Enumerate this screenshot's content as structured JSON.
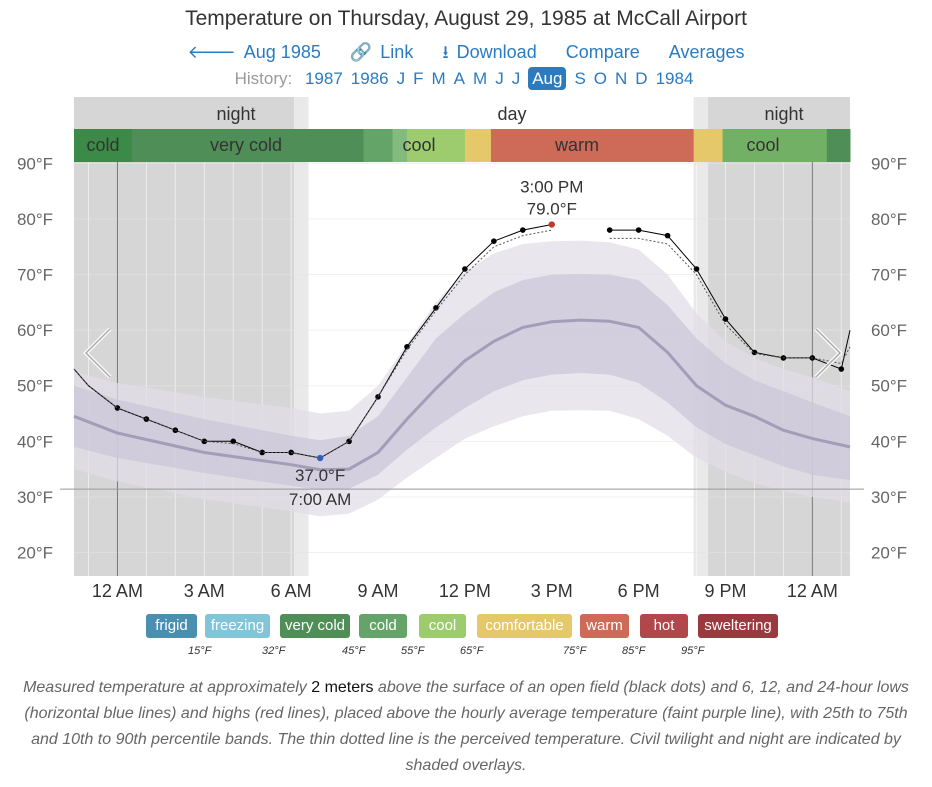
{
  "header": {
    "title": "Temperature on Thursday, August 29, 1985 at McCall Airport",
    "nav_back": "Aug 1985",
    "nav_link": "Link",
    "nav_download": "Download",
    "nav_compare": "Compare",
    "nav_averages": "Averages"
  },
  "history": {
    "label": "History:",
    "items": [
      "1987",
      "1986",
      "J",
      "F",
      "M",
      "A",
      "M",
      "J",
      "J",
      "Aug",
      "S",
      "O",
      "N",
      "D",
      "1984"
    ],
    "selected": "Aug"
  },
  "colors": {
    "link": "#2a7bc0",
    "night": "#d6d6d6",
    "twilight": "#e9e9e9",
    "band_outer": "#e0dde8",
    "band_inner": "#cbc6d9",
    "avg_line": "#a39db8",
    "measured": "#000000",
    "max_marker": "#c0392b",
    "min_marker": "#3060c0"
  },
  "chart_data": {
    "type": "line",
    "title": "Temperature on Thursday, August 29, 1985 at McCall Airport",
    "x_unit": "hour of day",
    "xlim": [
      -1.5,
      25.3
    ],
    "ylim": [
      16.5,
      96
    ],
    "y_ticks": [
      20,
      30,
      40,
      50,
      60,
      70,
      80,
      90
    ],
    "y_tick_labels": [
      "20°F",
      "30°F",
      "40°F",
      "50°F",
      "60°F",
      "70°F",
      "80°F",
      "90°F"
    ],
    "x_ticks": [
      0,
      3,
      6,
      9,
      12,
      15,
      18,
      21,
      24
    ],
    "x_tick_labels": [
      "12 AM",
      "3 AM",
      "6 AM",
      "9 AM",
      "12 PM",
      "3 PM",
      "6 PM",
      "9 PM",
      "12 AM"
    ],
    "periods": [
      {
        "label": "night",
        "kind": "night",
        "start": -1.5,
        "end": 6.1
      },
      {
        "label": "",
        "kind": "twilight",
        "start": 6.1,
        "end": 6.6
      },
      {
        "label": "day",
        "kind": "day",
        "start": 6.6,
        "end": 19.9
      },
      {
        "label": "",
        "kind": "twilight",
        "start": 19.9,
        "end": 20.4
      },
      {
        "label": "night",
        "kind": "night",
        "start": 20.4,
        "end": 25.3
      }
    ],
    "category_bar": [
      {
        "label": "cold",
        "start": -1.5,
        "end": 0.5,
        "color": "#3c8a47"
      },
      {
        "label": "very cold",
        "start": 0.5,
        "end": 8.5,
        "color": "#4f8e57"
      },
      {
        "label": "",
        "start": 8.5,
        "end": 9.5,
        "color": "#64a468"
      },
      {
        "label": "",
        "start": 9.5,
        "end": 10.0,
        "color": "#82bb7c"
      },
      {
        "label": "cool",
        "start": 10.0,
        "end": 12.0,
        "color": "#9ccc6e"
      },
      {
        "label": "",
        "start": 12.0,
        "end": 12.9,
        "color": "#e5c869"
      },
      {
        "label": "warm",
        "start": 12.9,
        "end": 19.9,
        "color": "#ce6a58"
      },
      {
        "label": "",
        "start": 19.9,
        "end": 20.9,
        "color": "#e5c869"
      },
      {
        "label": "cool",
        "start": 20.9,
        "end": 24.5,
        "color": "#72b066"
      },
      {
        "label": "",
        "start": 24.5,
        "end": 25.3,
        "color": "#4f8e57"
      }
    ],
    "series": [
      {
        "name": "measured temperature",
        "x": [
          -1.5,
          -1,
          0,
          1,
          2,
          3,
          4,
          5,
          6,
          7,
          8,
          9,
          10,
          11,
          12,
          13,
          14,
          15
        ],
        "values": [
          53,
          50,
          46,
          44,
          42,
          40,
          40,
          38,
          38,
          37,
          40,
          48,
          57,
          64,
          71,
          76,
          78,
          79
        ]
      },
      {
        "name": "measured temperature (evening)",
        "x": [
          17,
          18,
          19,
          20,
          21,
          22,
          23,
          24,
          25,
          25.3
        ],
        "values": [
          78,
          78,
          77,
          71,
          62,
          56,
          55,
          55,
          53,
          60
        ]
      },
      {
        "name": "perceived temperature",
        "x": [
          -1.5,
          -1,
          0,
          1,
          2,
          3,
          4,
          5,
          6,
          7,
          8,
          9,
          10,
          11,
          12,
          13,
          14,
          15
        ],
        "values": [
          53,
          50,
          46,
          44,
          42,
          40,
          39.6,
          38,
          38,
          37,
          40,
          48,
          56.5,
          63.5,
          70,
          75,
          77,
          78
        ]
      },
      {
        "name": "perceived temperature (evening)",
        "x": [
          17,
          18,
          19,
          20,
          21,
          22,
          23,
          24,
          25,
          25.3
        ],
        "values": [
          76.5,
          76.5,
          75.5,
          70,
          61,
          55.8,
          55,
          55,
          54,
          57
        ]
      }
    ],
    "average": {
      "x": [
        -1.5,
        0,
        3,
        6,
        7,
        8,
        9,
        10,
        11,
        12,
        13,
        14,
        15,
        16,
        17,
        18,
        19,
        20,
        21,
        22,
        23,
        24,
        25.3
      ],
      "avg": [
        44.5,
        41.5,
        38,
        35.8,
        34.9,
        35,
        38,
        44,
        49.5,
        54.5,
        58,
        60.5,
        61.5,
        61.8,
        61.6,
        60.5,
        56,
        50,
        46.5,
        44.5,
        42,
        40.5,
        39
      ],
      "p25": [
        39,
        37,
        34.3,
        32,
        31.3,
        31.5,
        34,
        38.5,
        42.5,
        46,
        49,
        51,
        52,
        52.3,
        52,
        50.5,
        47,
        42.5,
        39.5,
        37.5,
        35.5,
        34,
        33
      ],
      "p75": [
        50,
        47.5,
        44,
        41,
        40.2,
        41,
        44.5,
        51.5,
        58.5,
        63,
        66.8,
        69,
        70,
        70.1,
        70,
        69,
        64.5,
        58.5,
        54,
        51,
        49,
        47,
        44.5
      ],
      "p10": [
        35,
        32.8,
        29.6,
        27.4,
        26.5,
        27,
        29.5,
        33.5,
        37,
        40.5,
        42.7,
        44.5,
        45.5,
        45.6,
        45.5,
        44,
        41,
        37,
        34.5,
        32.5,
        31,
        30,
        29
      ],
      "p90": [
        52.5,
        50.5,
        48,
        46,
        45,
        45.5,
        50,
        57.5,
        65,
        70.5,
        73.8,
        75.5,
        76,
        76.1,
        75.8,
        74.5,
        70,
        63,
        58,
        55,
        53,
        51.5,
        49
      ]
    },
    "annotations": [
      {
        "kind": "max",
        "x": 15,
        "y": 79,
        "line1": "3:00 PM",
        "line2": "79.0°F"
      },
      {
        "kind": "min",
        "x": 7,
        "y": 37,
        "line1": "37.0°F",
        "line2": "7:00 AM"
      }
    ],
    "reference_line": {
      "y": 31.4
    }
  },
  "legend": {
    "categories": [
      {
        "label": "frigid",
        "color": "#4a8fb0"
      },
      {
        "label": "freezing",
        "color": "#82c4d8"
      },
      {
        "label": "very cold",
        "color": "#4f8e57"
      },
      {
        "label": "cold",
        "color": "#64a468"
      },
      {
        "label": "cool",
        "color": "#9ccc6e"
      },
      {
        "label": "comfortable",
        "color": "#e5c869"
      },
      {
        "label": "warm",
        "color": "#ce6a58"
      },
      {
        "label": "hot",
        "color": "#b2474b"
      },
      {
        "label": "sweltering",
        "color": "#9b3a3e"
      }
    ],
    "thresholds": [
      "15°F",
      "32°F",
      "45°F",
      "55°F",
      "65°F",
      "75°F",
      "85°F",
      "95°F"
    ]
  },
  "caption": {
    "part1": "Measured temperature at approximately ",
    "emph": "2 meters",
    "part2": " above the surface of an open field (black dots) and 6, 12, and 24-hour lows (horizontal blue lines) and highs (red lines), placed above the hourly average temperature (faint purple line), with 25th to 75th and 10th to 90th percentile bands. The thin dotted line is the perceived temperature. Civil twilight and night are indicated by shaded overlays."
  }
}
